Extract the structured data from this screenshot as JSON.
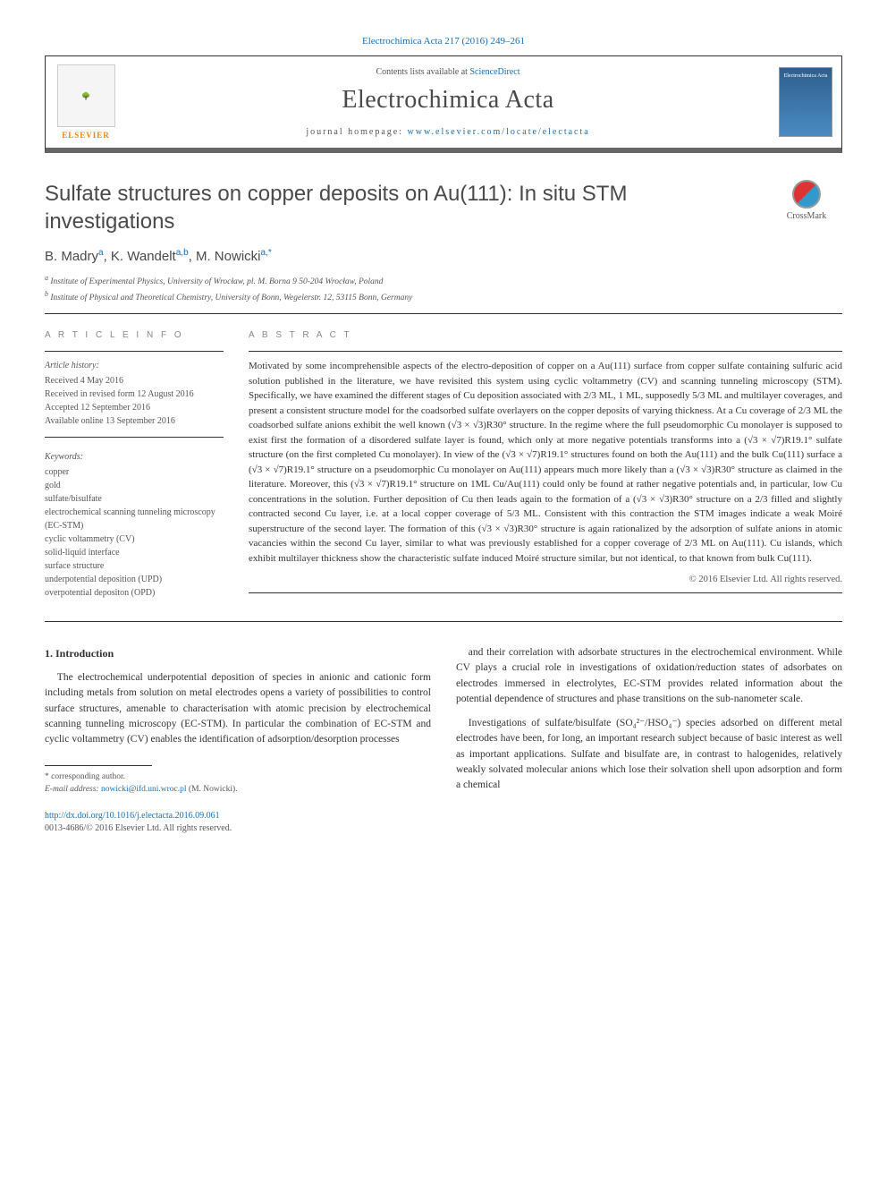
{
  "top_link": "Electrochimica Acta 217 (2016) 249–261",
  "header": {
    "contents_lists_prefix": "Contents lists available at ",
    "contents_lists_link": "ScienceDirect",
    "journal_title": "Electrochimica Acta",
    "homepage_prefix": "journal homepage: ",
    "homepage_link": "www.elsevier.com/locate/electacta",
    "elsevier_label": "ELSEVIER",
    "cover_text": "Electrochimica Acta"
  },
  "article": {
    "title": "Sulfate structures on copper deposits on Au(111): In situ STM investigations",
    "crossmark": "CrossMark",
    "authors_html": "B. Madry<sup>a</sup>, K. Wandelt<sup>a,b</sup>, M. Nowicki<sup>a,*</sup>",
    "affiliations": [
      "a Institute of Experimental Physics, University of Wrocław, pl. M. Borna 9 50-204 Wrocław, Poland",
      "b Institute of Physical and Theoretical Chemistry, University of Bonn, Wegelerstr. 12, 53115 Bonn, Germany"
    ]
  },
  "info": {
    "heading": "A R T I C L E  I N F O",
    "history_label": "Article history:",
    "history": [
      "Received 4 May 2016",
      "Received in revised form 12 August 2016",
      "Accepted 12 September 2016",
      "Available online 13 September 2016"
    ],
    "keywords_label": "Keywords:",
    "keywords": [
      "copper",
      "gold",
      "sulfate/bisulfate",
      "electrochemical scanning tunneling microscopy (EC-STM)",
      "cyclic voltammetry (CV)",
      "solid-liquid interface",
      "surface structure",
      "underpotential deposition (UPD)",
      "overpotential depositon (OPD)"
    ]
  },
  "abstract": {
    "heading": "A B S T R A C T",
    "text": "Motivated by some incomprehensible aspects of the electro-deposition of copper on a Au(111) surface from copper sulfate containing sulfuric acid solution published in the literature, we have revisited this system using cyclic voltammetry (CV) and scanning tunneling microscopy (STM). Specifically, we have examined the different stages of Cu deposition associated with 2/3 ML, 1 ML, supposedly 5/3 ML and multilayer coverages, and present a consistent structure model for the coadsorbed sulfate overlayers on the copper deposits of varying thickness. At a Cu coverage of 2/3 ML the coadsorbed sulfate anions exhibit the well known (√3 × √3)R30° structure. In the regime where the full pseudomorphic Cu monolayer is supposed to exist first the formation of a disordered sulfate layer is found, which only at more negative potentials transforms into a (√3 × √7)R19.1° sulfate structure (on the first completed Cu monolayer). In view of the (√3 × √7)R19.1° structures found on both the Au(111) and the bulk Cu(111) surface a (√3 × √7)R19.1° structure on a pseudomorphic Cu monolayer on Au(111) appears much more likely than a (√3 × √3)R30° structure as claimed in the literature. Moreover, this (√3 × √7)R19.1° structure on 1ML Cu/Au(111) could only be found at rather negative potentials and, in particular, low Cu concentrations in the solution. Further deposition of Cu then leads again to the formation of a (√3 × √3)R30° structure on a 2/3 filled and slightly contracted second Cu layer, i.e. at a local copper coverage of 5/3 ML. Consistent with this contraction the STM images indicate a weak Moiré superstructure of the second layer. The formation of this (√3 × √3)R30° structure is again rationalized by the adsorption of sulfate anions in atomic vacancies within the second Cu layer, similar to what was previously established for a copper coverage of 2/3 ML on Au(111). Cu islands, which exhibit multilayer thickness show the characteristic sulfate induced Moiré structure similar, but not identical, to that known from bulk Cu(111).",
    "copyright": "© 2016 Elsevier Ltd. All rights reserved."
  },
  "body": {
    "section_heading": "1. Introduction",
    "left_paras": [
      "The electrochemical underpotential deposition of species in anionic and cationic form including metals from solution on metal electrodes opens a variety of possibilities to control surface structures, amenable to characterisation with atomic precision by electrochemical scanning tunneling microscopy (EC-STM). In particular the combination of EC-STM and cyclic voltammetry (CV) enables the identification of adsorption/desorption processes"
    ],
    "right_paras": [
      "and their correlation with adsorbate structures in the electrochemical environment. While CV plays a crucial role in investigations of oxidation/reduction states of adsorbates on electrodes immersed in electrolytes, EC-STM provides related information about the potential dependence of structures and phase transitions on the sub-nanometer scale.",
      "Investigations of sulfate/bisulfate (SO₄²⁻/HSO₄⁻) species adsorbed on different metal electrodes have been, for long, an important research subject because of basic interest as well as important applications. Sulfate and bisulfate are, in contrast to halogenides, relatively weakly solvated molecular anions which lose their solvation shell upon adsorption and form a chemical"
    ]
  },
  "footnote": {
    "corresponding": "* corresponding author.",
    "email_label": "E-mail address: ",
    "email": "nowicki@ifd.uni.wroc.pl",
    "email_suffix": " (M. Nowicki)."
  },
  "doi": {
    "link": "http://dx.doi.org/10.1016/j.electacta.2016.09.061",
    "issn_line": "0013-4686/© 2016 Elsevier Ltd. All rights reserved."
  },
  "colors": {
    "link": "#1a6fb4",
    "elsevier_orange": "#ff8200",
    "text_gray": "#4a4a4a",
    "border_dark": "#333"
  }
}
